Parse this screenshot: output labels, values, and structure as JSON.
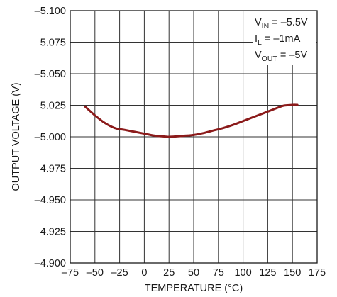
{
  "chart_data": {
    "type": "line",
    "xlabel": "TEMPERATURE (°C)",
    "ylabel": "OUTPUT VOLTAGE (V)",
    "xlim": [
      -75,
      175
    ],
    "ylim": [
      -4.9,
      -5.1
    ],
    "y_axis_reversed": true,
    "grid": true,
    "x_ticks": [
      -75,
      -50,
      -25,
      0,
      25,
      50,
      75,
      100,
      125,
      150,
      175
    ],
    "x_tick_labels": [
      "–75",
      "–50",
      "–25",
      "0",
      "25",
      "50",
      "75",
      "100",
      "125",
      "150",
      "175"
    ],
    "y_ticks": [
      -5.1,
      -5.075,
      -5.05,
      -5.025,
      -5.0,
      -4.975,
      -4.95,
      -4.925,
      -4.9
    ],
    "y_tick_labels": [
      "–5.100",
      "–5.075",
      "–5.050",
      "–5.025",
      "–5.000",
      "–4.975",
      "–4.950",
      "–4.925",
      "–4.900"
    ],
    "annotations": [
      {
        "main": "V",
        "sub": "IN",
        "rest": " = –5.5V"
      },
      {
        "main": "I",
        "sub": "L",
        "rest": " = –1mA"
      },
      {
        "main": "V",
        "sub": "OUT",
        "rest": " = –5V"
      }
    ],
    "legend_position": "top-right",
    "series": [
      {
        "color": "#8b1a1a",
        "x": [
          -60,
          -50,
          -40,
          -30,
          -20,
          -10,
          0,
          10,
          20,
          25,
          30,
          40,
          50,
          60,
          70,
          80,
          90,
          100,
          110,
          120,
          130,
          140,
          145,
          150,
          155
        ],
        "y": [
          -5.024,
          -5.017,
          -5.011,
          -5.007,
          -5.0055,
          -5.004,
          -5.0025,
          -5.001,
          -5.0003,
          -5.0,
          -5.0002,
          -5.0008,
          -5.0015,
          -5.003,
          -5.005,
          -5.007,
          -5.0095,
          -5.0125,
          -5.0155,
          -5.0185,
          -5.0215,
          -5.0245,
          -5.025,
          -5.0253,
          -5.0253
        ]
      }
    ]
  }
}
